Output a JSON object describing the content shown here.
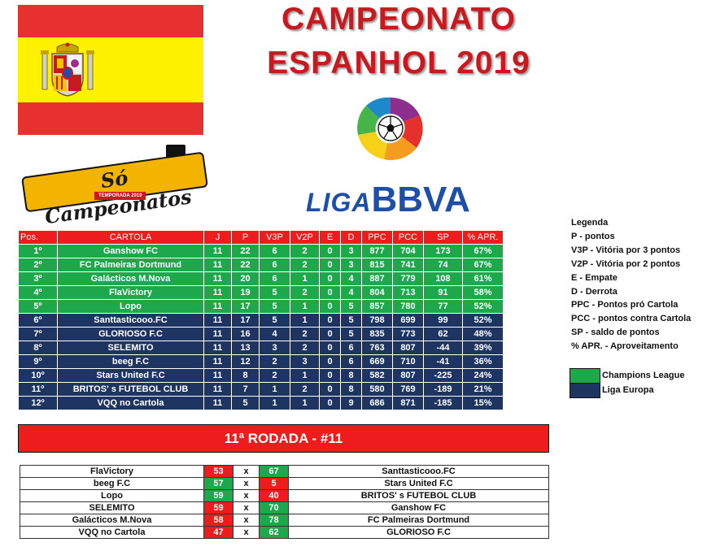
{
  "title": {
    "line1": "CAMPEONATO",
    "line2": "ESPANHOL 2019"
  },
  "logos": {
    "so_campeonatos": "Só Campeonatos",
    "temporada": "TEMPORADA 2019",
    "liga_a": "LIGA",
    "liga_b": "BBVA"
  },
  "colors": {
    "red": "#ee1c1c",
    "green": "#1ea84c",
    "navy": "#1d3560",
    "title_red": "#c8191e"
  },
  "standings": {
    "headers": [
      "Pos.",
      "CARTOLA",
      "J",
      "P",
      "V3P",
      "V2P",
      "E",
      "D",
      "PPC",
      "PCC",
      "SP",
      "% APR."
    ],
    "rows": [
      {
        "pos": "1º",
        "team": "Ganshow FC",
        "j": "11",
        "p": "22",
        "v3p": "6",
        "v2p": "2",
        "e": "0",
        "d": "3",
        "ppc": "877",
        "pcc": "704",
        "sp": "173",
        "apr": "67%",
        "zone": "cl"
      },
      {
        "pos": "2º",
        "team": "FC Palmeiras Dortmund",
        "j": "11",
        "p": "22",
        "v3p": "6",
        "v2p": "2",
        "e": "0",
        "d": "3",
        "ppc": "815",
        "pcc": "741",
        "sp": "74",
        "apr": "67%",
        "zone": "cl"
      },
      {
        "pos": "3º",
        "team": "Galácticos M.Nova",
        "j": "11",
        "p": "20",
        "v3p": "6",
        "v2p": "1",
        "e": "0",
        "d": "4",
        "ppc": "887",
        "pcc": "779",
        "sp": "108",
        "apr": "61%",
        "zone": "cl"
      },
      {
        "pos": "4º",
        "team": "FlaVictory",
        "j": "11",
        "p": "19",
        "v3p": "5",
        "v2p": "2",
        "e": "0",
        "d": "4",
        "ppc": "804",
        "pcc": "713",
        "sp": "91",
        "apr": "58%",
        "zone": "cl"
      },
      {
        "pos": "5º",
        "team": "Lopo",
        "j": "11",
        "p": "17",
        "v3p": "5",
        "v2p": "1",
        "e": "0",
        "d": "5",
        "ppc": "857",
        "pcc": "780",
        "sp": "77",
        "apr": "52%",
        "zone": "cl"
      },
      {
        "pos": "6º",
        "team": "Santtasticooo.FC",
        "j": "11",
        "p": "17",
        "v3p": "5",
        "v2p": "1",
        "e": "0",
        "d": "5",
        "ppc": "798",
        "pcc": "699",
        "sp": "99",
        "apr": "52%",
        "zone": "el"
      },
      {
        "pos": "7º",
        "team": "GLORIOSO F.C",
        "j": "11",
        "p": "16",
        "v3p": "4",
        "v2p": "2",
        "e": "0",
        "d": "5",
        "ppc": "835",
        "pcc": "773",
        "sp": "62",
        "apr": "48%",
        "zone": "el"
      },
      {
        "pos": "8º",
        "team": "SELEMITO",
        "j": "11",
        "p": "13",
        "v3p": "3",
        "v2p": "2",
        "e": "0",
        "d": "6",
        "ppc": "763",
        "pcc": "807",
        "sp": "-44",
        "apr": "39%",
        "zone": "el"
      },
      {
        "pos": "9º",
        "team": "beeg F.C",
        "j": "11",
        "p": "12",
        "v3p": "2",
        "v2p": "3",
        "e": "0",
        "d": "6",
        "ppc": "669",
        "pcc": "710",
        "sp": "-41",
        "apr": "36%",
        "zone": "el"
      },
      {
        "pos": "10º",
        "team": "Stars United F.C",
        "j": "11",
        "p": "8",
        "v3p": "2",
        "v2p": "1",
        "e": "0",
        "d": "8",
        "ppc": "582",
        "pcc": "807",
        "sp": "-225",
        "apr": "24%",
        "zone": "el"
      },
      {
        "pos": "11º",
        "team": "BRITOS' s FUTEBOL CLUB",
        "j": "11",
        "p": "7",
        "v3p": "1",
        "v2p": "2",
        "e": "0",
        "d": "8",
        "ppc": "580",
        "pcc": "769",
        "sp": "-189",
        "apr": "21%",
        "zone": "el"
      },
      {
        "pos": "12º",
        "team": "VQQ no Cartola",
        "j": "11",
        "p": "5",
        "v3p": "1",
        "v2p": "1",
        "e": "0",
        "d": "9",
        "ppc": "686",
        "pcc": "871",
        "sp": "-185",
        "apr": "15%",
        "zone": "el"
      }
    ]
  },
  "legend": {
    "title": "Legenda",
    "items": [
      "P - pontos",
      "V3P - Vitória por 3 pontos",
      "V2P - Vitória por 2 pontos",
      "E - Empate",
      "D - Derrota",
      "PPC - Pontos pró Cartola",
      "PCC - pontos contra Cartola",
      "SP - saldo de pontos",
      "% APR. - Aproveitamento"
    ],
    "keys": [
      {
        "label": "Champions League",
        "color": "#1ea84c"
      },
      {
        "label": "Liga Europa",
        "color": "#1d3560"
      }
    ]
  },
  "round": {
    "title": "11ª RODADA - #11"
  },
  "matches": [
    {
      "home": "FlaVictory",
      "home_score": "53",
      "home_win": false,
      "sep": "x",
      "away_score": "67",
      "away": "Santtasticooo.FC"
    },
    {
      "home": "beeg F.C",
      "home_score": "57",
      "home_win": true,
      "sep": "x",
      "away_score": "5",
      "away": "Stars United F.C"
    },
    {
      "home": "Lopo",
      "home_score": "59",
      "home_win": true,
      "sep": "x",
      "away_score": "40",
      "away": "BRITOS' s FUTEBOL CLUB"
    },
    {
      "home": "SELEMITO",
      "home_score": "59",
      "home_win": false,
      "sep": "x",
      "away_score": "70",
      "away": "Ganshow FC"
    },
    {
      "home": "Galácticos M.Nova",
      "home_score": "58",
      "home_win": false,
      "sep": "x",
      "away_score": "78",
      "away": "FC Palmeiras Dortmund"
    },
    {
      "home": "VQQ no Cartola",
      "home_score": "47",
      "home_win": false,
      "sep": "x",
      "away_score": "62",
      "away": "GLORIOSO F.C"
    }
  ]
}
